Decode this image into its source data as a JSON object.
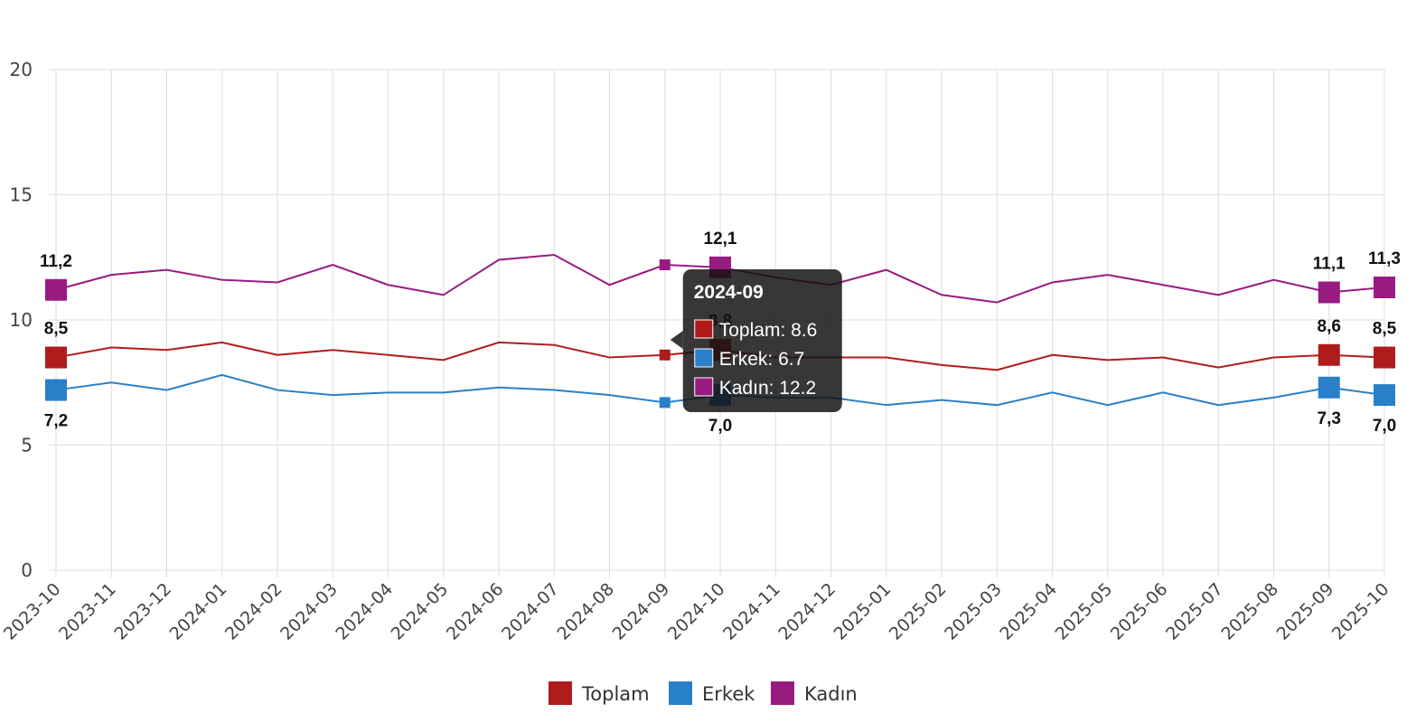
{
  "chart_data": {
    "type": "line",
    "categories": [
      "2023-10",
      "2023-11",
      "2023-12",
      "2024-01",
      "2024-02",
      "2024-03",
      "2024-04",
      "2024-05",
      "2024-06",
      "2024-07",
      "2024-08",
      "2024-09",
      "2024-10",
      "2024-11",
      "2024-12",
      "2025-01",
      "2025-02",
      "2025-03",
      "2025-04",
      "2025-05",
      "2025-06",
      "2025-07",
      "2025-08",
      "2025-09",
      "2025-10"
    ],
    "ylim": [
      0,
      20
    ],
    "yticks": [
      0,
      5,
      10,
      15,
      20
    ],
    "grid": true,
    "legend_position": "bottom",
    "series": [
      {
        "name": "Toplam",
        "color": "#b01c1c",
        "values": [
          8.5,
          8.9,
          8.8,
          9.1,
          8.6,
          8.8,
          8.6,
          8.4,
          9.1,
          9.0,
          8.5,
          8.6,
          8.8,
          8.5,
          8.5,
          8.5,
          8.2,
          8.0,
          8.6,
          8.4,
          8.5,
          8.1,
          8.5,
          8.6,
          8.5
        ],
        "labels": [
          {
            "index": 0,
            "text": "8,5"
          },
          {
            "index": 12,
            "text": "8,8"
          },
          {
            "index": 23,
            "text": "8,6"
          },
          {
            "index": 24,
            "text": "8,5"
          }
        ]
      },
      {
        "name": "Erkek",
        "color": "#2a80c8",
        "values": [
          7.2,
          7.5,
          7.2,
          7.8,
          7.2,
          7.0,
          7.1,
          7.1,
          7.3,
          7.2,
          7.0,
          6.7,
          7.0,
          6.9,
          6.9,
          6.6,
          6.8,
          6.6,
          7.1,
          6.6,
          7.1,
          6.6,
          6.9,
          7.3,
          7.0
        ],
        "labels": [
          {
            "index": 0,
            "text": "7,2"
          },
          {
            "index": 12,
            "text": "7,0"
          },
          {
            "index": 23,
            "text": "7,3"
          },
          {
            "index": 24,
            "text": "7,0"
          }
        ]
      },
      {
        "name": "Kadın",
        "color": "#981b82",
        "values": [
          11.2,
          11.8,
          12.0,
          11.6,
          11.5,
          12.2,
          11.4,
          11.0,
          12.4,
          12.6,
          11.4,
          12.2,
          12.1,
          11.7,
          11.4,
          12.0,
          11.0,
          10.7,
          11.5,
          11.8,
          11.4,
          11.0,
          11.6,
          11.1,
          11.3
        ],
        "labels": [
          {
            "index": 0,
            "text": "11,2"
          },
          {
            "index": 12,
            "text": "12,1"
          },
          {
            "index": 23,
            "text": "11,1"
          },
          {
            "index": 24,
            "text": "11,3"
          }
        ]
      }
    ],
    "tooltip": {
      "index": 11,
      "title": "2024-09",
      "items": [
        {
          "text": "Toplam: 8.6",
          "color": "#b01c1c"
        },
        {
          "text": "Erkek: 6.7",
          "color": "#2a80c8"
        },
        {
          "text": "Kadın: 12.2",
          "color": "#981b82"
        }
      ]
    }
  }
}
